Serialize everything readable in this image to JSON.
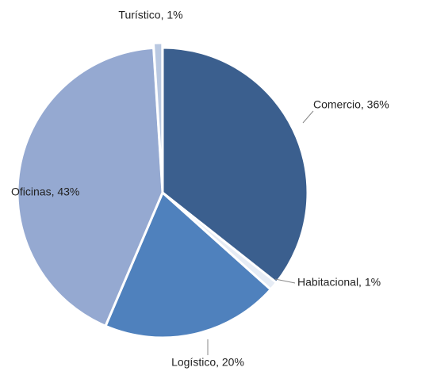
{
  "chart_data": {
    "type": "pie",
    "values": [
      36,
      1,
      20,
      43,
      1
    ],
    "value_labels": [
      "Comercio, 36%",
      "Habitacional, 1%",
      "Logístico, 20%",
      "Oficinas, 43%",
      "Turístico, 1%"
    ],
    "colors": [
      "#3b5f8e",
      "#e6ecf5",
      "#4f81bd",
      "#95a9d1",
      "#b9c8e1"
    ]
  }
}
